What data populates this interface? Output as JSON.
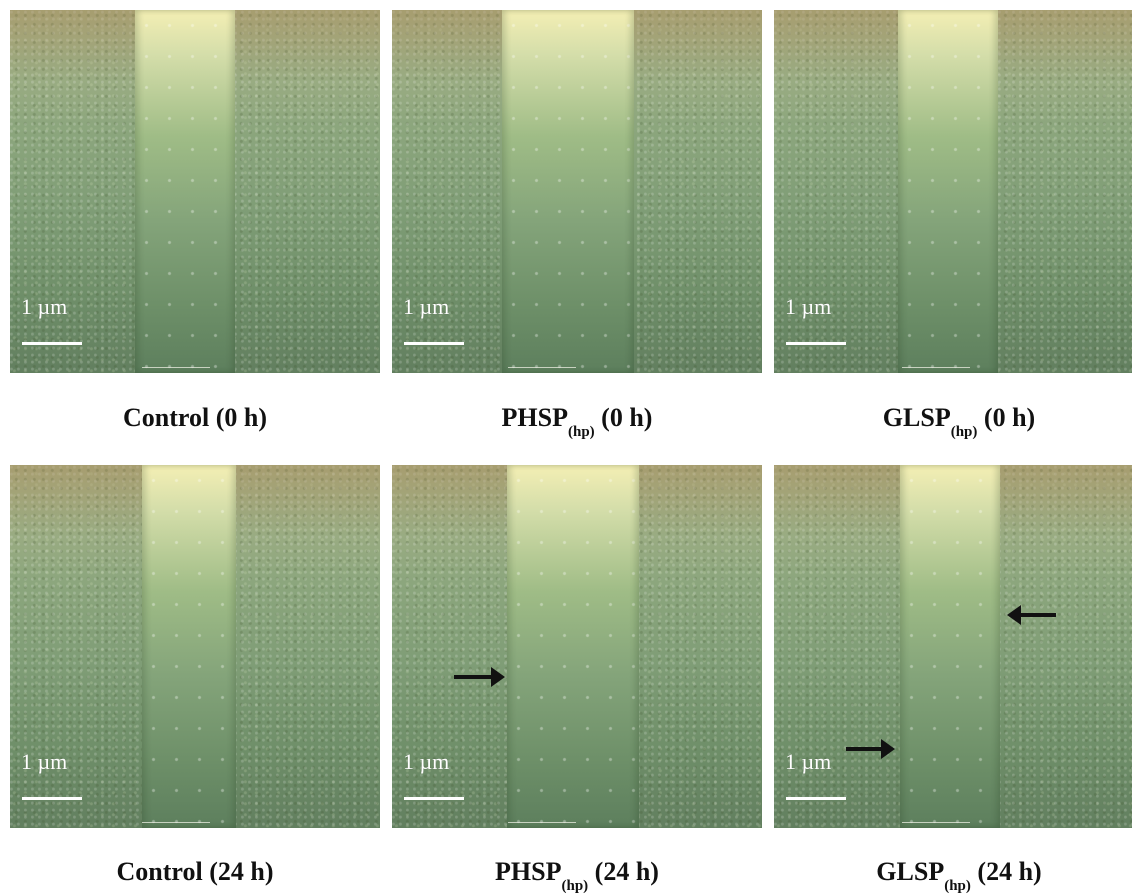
{
  "figure": {
    "scale_label": "1 µm",
    "panels": [
      {
        "id": "control-0h",
        "caption_main": "Control (0 h)",
        "caption_sub": "",
        "caption_tail": ""
      },
      {
        "id": "phsp-0h",
        "caption_main": "PHSP",
        "caption_sub": "(hp)",
        "caption_tail": " (0 h)"
      },
      {
        "id": "glsp-0h",
        "caption_main": "GLSP",
        "caption_sub": "(hp)",
        "caption_tail": " (0 h)"
      },
      {
        "id": "control-24h",
        "caption_main": "Control (24 h)",
        "caption_sub": "",
        "caption_tail": ""
      },
      {
        "id": "phsp-24h",
        "caption_main": "PHSP",
        "caption_sub": "(hp)",
        "caption_tail": " (24 h)"
      },
      {
        "id": "glsp-24h",
        "caption_main": "GLSP",
        "caption_sub": "(hp)",
        "caption_tail": " (24 h)"
      }
    ],
    "colors": {
      "caption": "#111111",
      "scale_bar": "#ffffff",
      "arrow": "#111111"
    }
  }
}
